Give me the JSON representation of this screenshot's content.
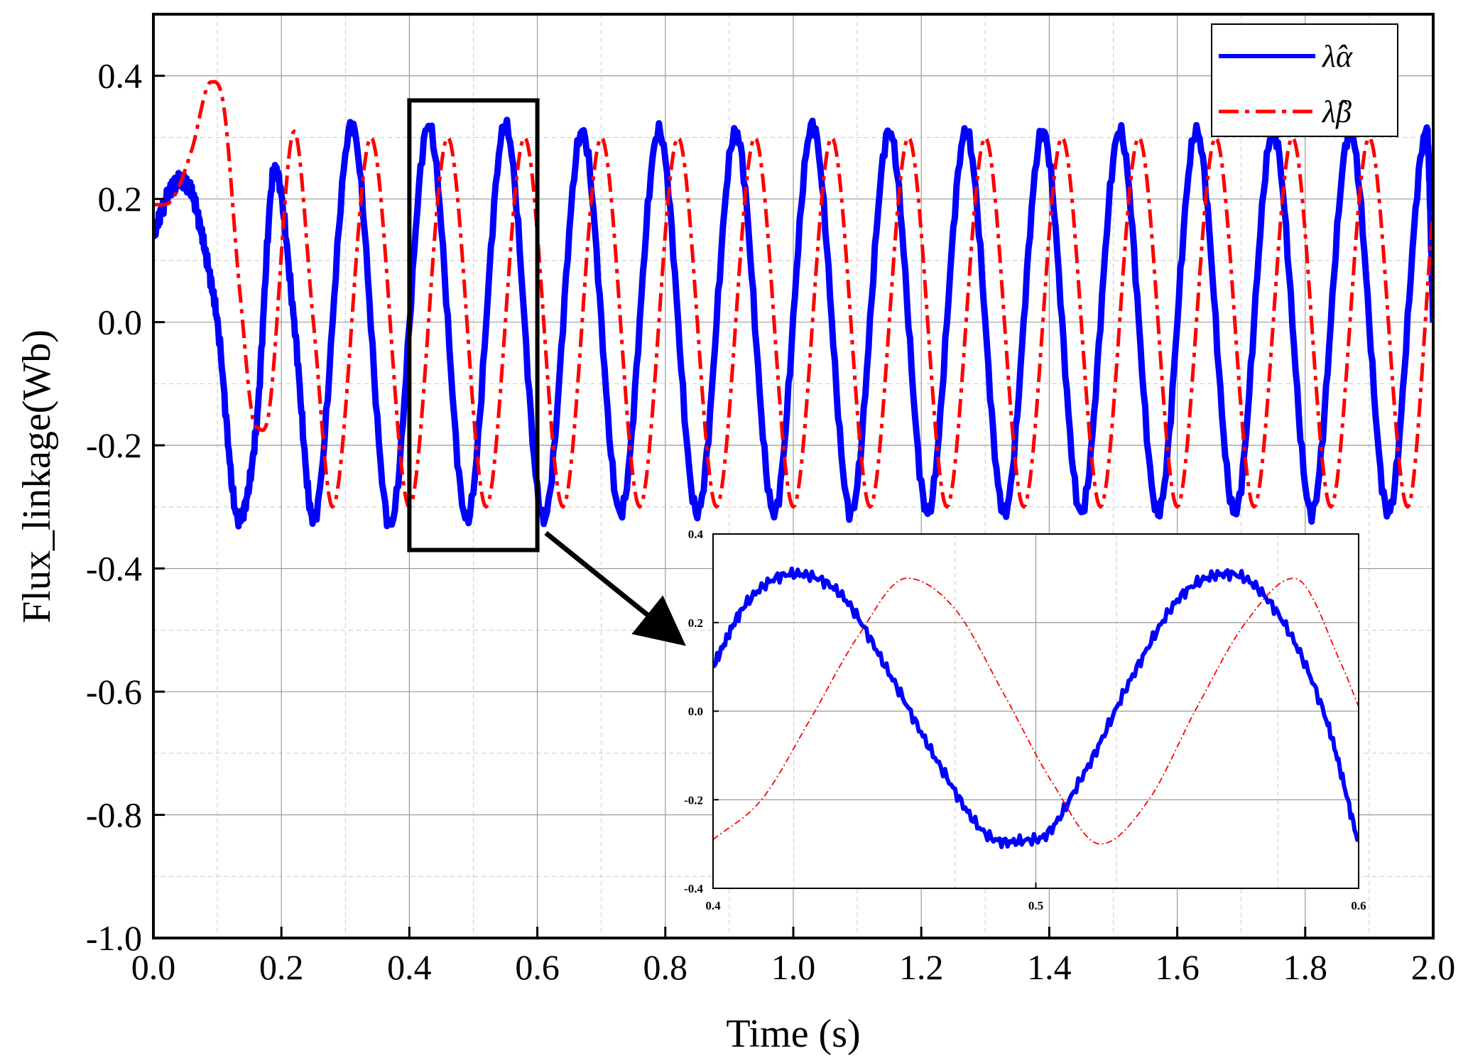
{
  "chart_data": [
    {
      "type": "line",
      "xlabel": "Time (s)",
      "ylabel": "Flux_linkage(Wb)",
      "xlim": [
        0.0,
        2.0
      ],
      "ylim": [
        -1.0,
        0.5
      ],
      "x_ticks": [
        "0.0",
        "0.2",
        "0.4",
        "0.6",
        "0.8",
        "1.0",
        "1.2",
        "1.4",
        "1.6",
        "1.8",
        "2.0"
      ],
      "y_ticks": [
        "-1.0",
        "-0.8",
        "-0.6",
        "-0.4",
        "-0.2",
        "0.0",
        "0.2",
        "0.4"
      ],
      "grid": true,
      "legend_position": "top-right",
      "series": [
        {
          "name": "λ̂α",
          "color": "#0000ff",
          "style": "solid",
          "x": [
            0.0,
            0.02,
            0.04,
            0.06,
            0.08,
            0.1,
            0.133,
            0.16,
            0.19,
            0.22,
            0.25,
            0.31,
            0.37,
            0.43,
            0.49,
            0.55,
            0.61,
            0.67,
            0.73,
            0.79,
            0.85,
            0.91,
            0.97,
            1.03,
            1.09,
            1.15,
            1.21,
            1.27,
            1.33,
            1.39,
            1.45,
            1.51,
            1.57,
            1.63,
            1.69,
            1.75,
            1.81,
            1.87,
            1.93,
            1.99,
            2.0
          ],
          "y": [
            0.14,
            0.2,
            0.23,
            0.21,
            0.12,
            0.0,
            -0.32,
            -0.18,
            0.25,
            0.0,
            -0.32,
            0.32,
            -0.33,
            0.32,
            -0.32,
            0.32,
            -0.32,
            0.31,
            -0.31,
            0.31,
            -0.31,
            0.31,
            -0.31,
            0.32,
            -0.31,
            0.31,
            -0.31,
            0.31,
            -0.31,
            0.31,
            -0.31,
            0.31,
            -0.31,
            0.31,
            -0.31,
            0.31,
            -0.31,
            0.31,
            -0.31,
            0.31,
            0.0
          ]
        },
        {
          "name": "λ̂β",
          "color": "#ff0000",
          "style": "dashdot",
          "x": [
            0.0,
            0.03,
            0.06,
            0.09,
            0.11,
            0.135,
            0.16,
            0.18,
            0.22,
            0.25,
            0.28,
            0.34,
            0.4,
            0.46,
            0.52,
            0.58,
            0.64,
            0.7,
            0.76,
            0.82,
            0.88,
            0.94,
            1.0,
            1.06,
            1.12,
            1.18,
            1.24,
            1.3,
            1.36,
            1.42,
            1.48,
            1.54,
            1.6,
            1.66,
            1.72,
            1.78,
            1.84,
            1.9,
            1.96,
            2.0
          ],
          "y": [
            0.19,
            0.2,
            0.28,
            0.39,
            0.35,
            0.05,
            -0.17,
            -0.15,
            0.31,
            0.0,
            -0.3,
            0.3,
            -0.3,
            0.3,
            -0.3,
            0.3,
            -0.3,
            0.3,
            -0.3,
            0.3,
            -0.3,
            0.3,
            -0.3,
            0.3,
            -0.3,
            0.3,
            -0.3,
            0.3,
            -0.3,
            0.3,
            -0.3,
            0.3,
            -0.3,
            0.3,
            -0.3,
            0.3,
            -0.3,
            0.3,
            -0.3,
            0.18
          ]
        }
      ],
      "zoom_box": {
        "x": [
          0.4,
          0.6
        ],
        "y": [
          -0.37,
          0.36
        ]
      }
    },
    {
      "type": "line",
      "xlim": [
        0.4,
        0.6
      ],
      "ylim": [
        -0.4,
        0.4
      ],
      "x_ticks": [
        "0.4",
        "0.5",
        "0.6"
      ],
      "y_ticks": [
        "-0.4",
        "-0.2",
        "0.0",
        "0.2",
        "0.4"
      ],
      "grid": true,
      "series": [
        {
          "name": "λ̂α",
          "color": "#0000ff",
          "style": "solid",
          "x": [
            0.4,
            0.41,
            0.425,
            0.44,
            0.455,
            0.47,
            0.485,
            0.5,
            0.515,
            0.53,
            0.545,
            0.56,
            0.575,
            0.59,
            0.6
          ],
          "y": [
            0.1,
            0.24,
            0.31,
            0.26,
            0.08,
            -0.12,
            -0.28,
            -0.29,
            -0.14,
            0.08,
            0.26,
            0.31,
            0.22,
            -0.02,
            -0.3
          ]
        },
        {
          "name": "λ̂β",
          "color": "#ff0000",
          "style": "dashdot",
          "x": [
            0.4,
            0.415,
            0.43,
            0.445,
            0.46,
            0.475,
            0.49,
            0.505,
            0.52,
            0.535,
            0.55,
            0.565,
            0.58,
            0.595,
            0.6
          ],
          "y": [
            -0.29,
            -0.2,
            -0.02,
            0.17,
            0.3,
            0.23,
            0.04,
            -0.16,
            -0.3,
            -0.2,
            0.01,
            0.2,
            0.3,
            0.1,
            0.01
          ]
        }
      ]
    }
  ]
}
